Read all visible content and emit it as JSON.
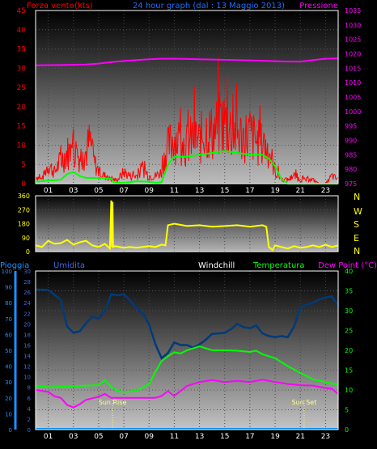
{
  "header": {
    "left_label": "Forza vento",
    "unit_left": "(kts)",
    "title": "24 hour graph (dal : 13 Maggio 2013)",
    "right_label": "Pressione"
  },
  "legend_bottom": {
    "pioggia": "Pioggia",
    "umidita": "Umidita",
    "windchill": "Windchill",
    "temperatura": "Temperatura",
    "dewpoint": "Dew Point (°C)"
  },
  "annotations": {
    "sunrise": "Sun Rise",
    "sunset": "Sun Set"
  },
  "colors": {
    "wind": "#ff0000",
    "wind_avg": "#00ff00",
    "pressure": "#ff00ff",
    "direction": "#ffff00",
    "humidity": "#003a7a",
    "temperature": "#00ff00",
    "dewpoint": "#ff00ff",
    "rain": "#0088ff",
    "rain_axis": "#1e90ff",
    "humidity_axis": "#4169e1",
    "windchill": "#ffffff",
    "axis_green": "#00ff00"
  },
  "x_ticks": [
    "01",
    "03",
    "05",
    "07",
    "09",
    "11",
    "13",
    "15",
    "17",
    "19",
    "21",
    "23"
  ],
  "chart_data": [
    {
      "id": "wind_pressure",
      "type": "line",
      "xlim": [
        0,
        24
      ],
      "ylim_left": [
        0,
        45
      ],
      "yticks_left": [
        0,
        5,
        10,
        15,
        20,
        25,
        30,
        35,
        40,
        45
      ],
      "ylim_right": [
        975,
        1035
      ],
      "yticks_right": [
        975,
        980,
        985,
        990,
        995,
        1000,
        1005,
        1010,
        1015,
        1020,
        1025,
        1030,
        1035
      ],
      "series": [
        {
          "name": "Forza vento",
          "kind": "spiky",
          "x": [
            0,
            0.5,
            1,
            1.5,
            2,
            2.5,
            3,
            3.5,
            4,
            4.3,
            4.6,
            5,
            5.5,
            6,
            6.5,
            7,
            7.5,
            8,
            8.5,
            9,
            9.5,
            10,
            10.3,
            10.6,
            11,
            11.5,
            12,
            12.5,
            13,
            13.5,
            14,
            14.5,
            15,
            15.5,
            16,
            16.5,
            17,
            17.5,
            18,
            18.5,
            19,
            19.3,
            19.6,
            20,
            20.5,
            21,
            21.5,
            22,
            22.5,
            23,
            23.5,
            24
          ],
          "y": [
            2,
            1,
            5,
            3,
            6,
            8,
            9,
            7,
            8,
            11,
            6,
            3,
            2,
            1,
            1,
            3,
            2,
            2,
            4,
            2,
            2,
            3,
            8,
            10,
            12,
            11,
            10,
            12,
            11,
            14,
            13,
            15,
            16,
            14,
            13,
            12,
            13,
            11,
            10,
            9,
            3,
            2,
            1,
            1,
            2,
            1,
            1,
            1,
            0,
            0,
            2,
            1
          ]
        },
        {
          "name": "Forza vento (media)",
          "kind": "line",
          "x": [
            0,
            1,
            2,
            2.5,
            3,
            3.5,
            4,
            5,
            6,
            6.2,
            7,
            8,
            9,
            9.5,
            10,
            10.5,
            11,
            12,
            13,
            14,
            15,
            16,
            17,
            18,
            18.5,
            19,
            19.5,
            20,
            24
          ],
          "y": [
            0.5,
            0.8,
            1,
            2.5,
            3,
            2,
            1.5,
            1.5,
            1.3,
            0.3,
            0.2,
            0.6,
            0.5,
            0.2,
            0.4,
            5,
            7,
            7,
            7.5,
            8,
            8.5,
            8,
            7.5,
            7.5,
            6.5,
            4.5,
            1.2,
            0,
            0
          ]
        },
        {
          "name": "Pressione",
          "axis": "right",
          "kind": "line",
          "x": [
            0,
            2,
            4,
            5,
            6,
            7,
            8,
            9,
            10,
            11,
            12,
            14,
            16,
            18,
            20,
            21,
            22,
            23,
            24
          ],
          "y": [
            1016,
            1016.1,
            1016.3,
            1016.6,
            1017.1,
            1017.5,
            1017.8,
            1018.1,
            1018.3,
            1018.3,
            1018.2,
            1018.0,
            1017.8,
            1017.6,
            1017.3,
            1017.3,
            1017.8,
            1018.3,
            1018.4
          ]
        }
      ]
    },
    {
      "id": "wind_direction",
      "type": "line",
      "xlim": [
        0,
        24
      ],
      "ylim": [
        0,
        360
      ],
      "yticks": [
        0,
        90,
        180,
        270,
        360
      ],
      "compass": [
        "N",
        "W",
        "S",
        "E",
        "N"
      ],
      "series": [
        {
          "name": "Direzione vento",
          "kind": "line",
          "x": [
            0,
            0.5,
            1,
            1.5,
            2,
            2.5,
            3,
            3.5,
            4,
            4.5,
            5,
            5.5,
            5.9,
            6,
            6.05,
            6.1,
            6.15,
            6.3,
            7,
            7.5,
            8,
            8.5,
            9,
            9.5,
            10,
            10.3,
            10.5,
            11,
            12,
            13,
            14,
            15,
            16,
            17,
            18,
            18.3,
            18.5,
            18.8,
            19,
            19.5,
            20,
            20.5,
            21,
            21.5,
            22,
            22.5,
            23,
            23.5,
            24
          ],
          "y": [
            40,
            30,
            70,
            50,
            55,
            75,
            45,
            60,
            70,
            40,
            30,
            50,
            20,
            330,
            30,
            320,
            30,
            35,
            25,
            30,
            25,
            30,
            35,
            30,
            45,
            40,
            170,
            180,
            165,
            170,
            160,
            165,
            170,
            160,
            170,
            160,
            30,
            10,
            40,
            30,
            20,
            35,
            25,
            30,
            40,
            30,
            45,
            30,
            40
          ]
        }
      ]
    },
    {
      "id": "temp_humidity",
      "type": "line",
      "xlim": [
        0,
        24
      ],
      "ylim_rain": [
        0,
        100
      ],
      "yticks_rain": [
        0,
        10,
        20,
        30,
        40,
        50,
        60,
        70,
        80,
        90,
        100
      ],
      "ylim_hum": [
        0,
        30
      ],
      "yticks_hum": [
        0,
        2,
        4,
        6,
        8,
        10,
        12,
        14,
        16,
        18,
        20,
        22,
        24,
        26,
        28,
        30
      ],
      "ylim_temp": [
        0,
        40
      ],
      "yticks_temp": [
        0,
        5,
        10,
        15,
        20,
        25,
        30,
        35,
        40
      ],
      "series": [
        {
          "name": "Umidita",
          "axis": "hum",
          "kind": "line",
          "x": [
            0,
            1,
            1.5,
            2,
            2.5,
            3,
            3.5,
            4,
            4.5,
            5,
            5.5,
            6,
            6.5,
            7,
            7.5,
            8,
            8.5,
            9,
            9.5,
            10,
            10.5,
            11,
            11.5,
            12,
            12.5,
            13,
            13.5,
            14,
            14.5,
            15,
            15.5,
            16,
            16.5,
            17,
            17.5,
            18,
            18.5,
            19,
            19.5,
            20,
            20.5,
            21,
            21.5,
            22,
            22.5,
            23,
            23.5,
            24
          ],
          "y": [
            26.5,
            26.4,
            25.5,
            24.5,
            19.5,
            18.3,
            18.6,
            20.1,
            21.4,
            21.0,
            22.4,
            25.6,
            25.4,
            25.6,
            24.4,
            23.0,
            22.0,
            19.9,
            16.2,
            13.5,
            14.5,
            16.5,
            16.0,
            16.0,
            15.5,
            16.1,
            17.0,
            18.1,
            18.2,
            18.3,
            19.0,
            20.0,
            19.4,
            19.2,
            19.7,
            18.2,
            17.7,
            17.5,
            17.7,
            17.5,
            19.5,
            23.1,
            23.6,
            24.0,
            24.6,
            25.0,
            25.2,
            23.5
          ]
        },
        {
          "name": "Temperatura",
          "axis": "temp",
          "kind": "line",
          "x": [
            0,
            1,
            2,
            3,
            4,
            5,
            5.5,
            6,
            6.5,
            7,
            8,
            9,
            9.5,
            10,
            10.5,
            11,
            11.5,
            12,
            13,
            14,
            15,
            16,
            17,
            17.5,
            18,
            19,
            20,
            21,
            22,
            23,
            24
          ],
          "y": [
            11,
            10.7,
            10.8,
            10.9,
            11.1,
            11.2,
            12.5,
            10.8,
            9.8,
            9.5,
            9.8,
            11.5,
            14.5,
            17.3,
            18.5,
            19.5,
            19.2,
            20,
            21,
            20,
            20,
            19.9,
            19.6,
            19.9,
            19,
            18,
            16,
            14.3,
            12.7,
            12,
            11.3
          ]
        },
        {
          "name": "Dew Point",
          "axis": "temp",
          "kind": "line",
          "x": [
            0,
            1,
            1.5,
            2,
            2.5,
            3,
            3.5,
            4,
            5,
            5.5,
            6,
            7,
            8,
            9,
            9.5,
            10,
            10.5,
            11,
            12,
            13,
            14,
            15,
            16,
            17,
            18,
            19,
            20,
            21,
            22,
            23,
            23.5,
            24
          ],
          "y": [
            10,
            9.5,
            8.4,
            8,
            6.2,
            5.6,
            6.4,
            7.5,
            8.3,
            9,
            8,
            8,
            8,
            8,
            8,
            8.5,
            9.7,
            8.5,
            11,
            12,
            12.5,
            12,
            12.3,
            12,
            12.6,
            12,
            11.5,
            11.2,
            11.1,
            10.5,
            10.3,
            9
          ]
        },
        {
          "name": "Pioggia",
          "axis": "rain",
          "kind": "line",
          "x": [
            0,
            24
          ],
          "y": [
            0,
            0
          ]
        }
      ],
      "events": [
        {
          "label_key": "sunrise",
          "x": 6.1
        },
        {
          "label_key": "sunset",
          "x": 21.3
        }
      ]
    }
  ]
}
